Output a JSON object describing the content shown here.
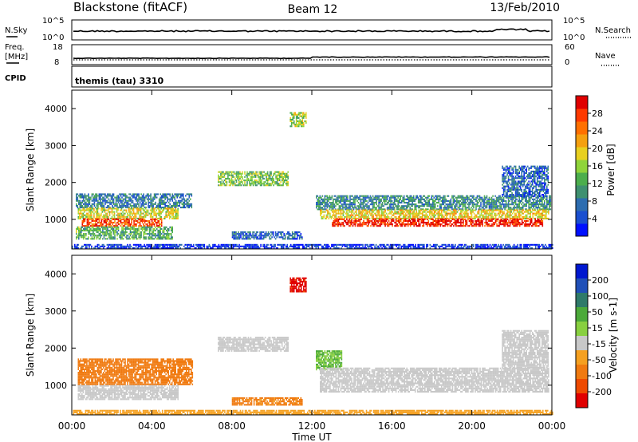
{
  "header": {
    "station": "Blackstone (fitACF)",
    "beam": "Beam 12",
    "date": "13/Feb/2010"
  },
  "strips": {
    "nsky_label": "N.Sky",
    "nsearch_label": "N.Search",
    "log_top": "10^5",
    "log_bottom": "10^0",
    "freq_label_1": "Freq.",
    "freq_label_2": "[MHz]",
    "freq_tick_top": "18",
    "freq_tick_bottom": "8",
    "nave_label": "Nave",
    "nave_tick_top": "60",
    "nave_tick_bottom": "0",
    "cpid_label": "CPID",
    "cpid_value": "themis (tau) 3310"
  },
  "chart_data": [
    {
      "type": "heatmap",
      "name": "power",
      "ylabel": "Slant Range [km]",
      "xlabel": "Time UT",
      "x_range_hours": [
        0,
        24
      ],
      "ylim": [
        200,
        4500
      ],
      "yticks": [
        "1000",
        "2000",
        "3000",
        "4000"
      ],
      "xticks": [
        "00:00",
        "04:00",
        "08:00",
        "12:00",
        "16:00",
        "20:00",
        "00:00"
      ],
      "colorbar": {
        "label": "Power [dB]",
        "ticks": [
          "4",
          "8",
          "12",
          "16",
          "20",
          "24",
          "28"
        ],
        "colors": [
          "#0010ff",
          "#1a4fd0",
          "#2d6db0",
          "#3f9070",
          "#4cae4c",
          "#8fd43a",
          "#e8d020",
          "#f5a010",
          "#ff7000",
          "#ff3a00",
          "#e00000"
        ]
      },
      "regions": [
        {
          "t0": 0.2,
          "t1": 6.0,
          "r0": 1300,
          "r1": 1700,
          "level": 0.25
        },
        {
          "t0": 0.3,
          "t1": 5.3,
          "r0": 1000,
          "r1": 1300,
          "level": 0.55
        },
        {
          "t0": 0.5,
          "t1": 4.5,
          "r0": 800,
          "r1": 1000,
          "level": 0.85
        },
        {
          "t0": 0.2,
          "t1": 5.0,
          "r0": 450,
          "r1": 800,
          "level": 0.4
        },
        {
          "t0": 7.3,
          "t1": 10.8,
          "r0": 1900,
          "r1": 2300,
          "level": 0.45
        },
        {
          "t0": 8.0,
          "t1": 11.5,
          "r0": 450,
          "r1": 650,
          "level": 0.2
        },
        {
          "t0": 10.9,
          "t1": 11.7,
          "r0": 3500,
          "r1": 3900,
          "level": 0.5
        },
        {
          "t0": 12.2,
          "t1": 23.9,
          "r0": 1250,
          "r1": 1650,
          "level": 0.3
        },
        {
          "t0": 12.4,
          "t1": 23.8,
          "r0": 1000,
          "r1": 1250,
          "level": 0.6
        },
        {
          "t0": 13.0,
          "t1": 23.5,
          "r0": 800,
          "r1": 1000,
          "level": 0.92
        },
        {
          "t0": 21.5,
          "t1": 23.8,
          "r0": 1600,
          "r1": 2450,
          "level": 0.2
        },
        {
          "t0": 0.0,
          "t1": 24.0,
          "r0": 200,
          "r1": 330,
          "level": 0.1
        }
      ]
    },
    {
      "type": "heatmap",
      "name": "velocity",
      "ylabel": "Slant Range [km]",
      "xlabel": "Time UT",
      "x_range_hours": [
        0,
        24
      ],
      "ylim": [
        200,
        4500
      ],
      "yticks": [
        "1000",
        "2000",
        "3000",
        "4000"
      ],
      "xticks": [
        "00:00",
        "04:00",
        "08:00",
        "12:00",
        "16:00",
        "20:00",
        "00:00"
      ],
      "colorbar": {
        "label": "Velocity [m s-1]",
        "ticks": [
          "200",
          "100",
          "50",
          "15",
          "-15",
          "-50",
          "-100",
          "-200"
        ],
        "colors": [
          "#0018d0",
          "#2050b8",
          "#2f7a6a",
          "#4caa3a",
          "#88d040",
          "#c8c8c8",
          "#f5a020",
          "#f07a10",
          "#ee4a00",
          "#e00000"
        ]
      },
      "regions": [
        {
          "t0": 0.3,
          "t1": 6.0,
          "r0": 1000,
          "r1": 1700,
          "vel": -75
        },
        {
          "t0": 0.3,
          "t1": 5.3,
          "r0": 600,
          "r1": 1000,
          "vel": 0
        },
        {
          "t0": 7.3,
          "t1": 10.8,
          "r0": 1900,
          "r1": 2300,
          "vel": 0
        },
        {
          "t0": 8.0,
          "t1": 11.5,
          "r0": 450,
          "r1": 650,
          "vel": -60
        },
        {
          "t0": 10.9,
          "t1": 11.7,
          "r0": 3500,
          "r1": 3900,
          "vel": -160
        },
        {
          "t0": 12.2,
          "t1": 13.5,
          "r0": 1400,
          "r1": 1900,
          "vel": 30
        },
        {
          "t0": 12.4,
          "t1": 23.8,
          "r0": 800,
          "r1": 1450,
          "vel": 0
        },
        {
          "t0": 21.5,
          "t1": 23.8,
          "r0": 1450,
          "r1": 2450,
          "vel": 0
        },
        {
          "t0": 0.0,
          "t1": 24.0,
          "r0": 200,
          "r1": 330,
          "vel": -30
        }
      ]
    }
  ]
}
